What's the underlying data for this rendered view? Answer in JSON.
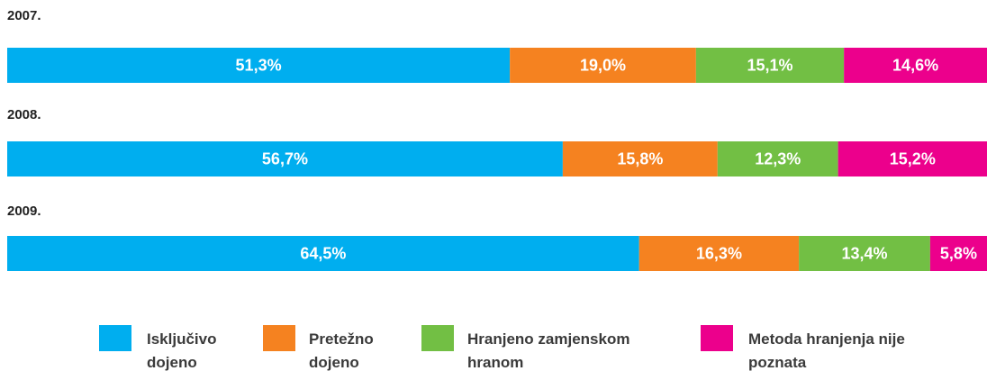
{
  "chart_data": {
    "type": "bar",
    "orientation": "horizontal",
    "stacked": true,
    "categories": [
      "2007.",
      "2008.",
      "2009."
    ],
    "xlim": [
      0,
      100
    ],
    "series": [
      {
        "name": "Isključivo dojeno",
        "color": "#00aeef",
        "values": [
          51.3,
          56.7,
          64.5
        ],
        "value_labels": [
          "51,3%",
          "56,7%",
          "64,5%"
        ]
      },
      {
        "name": "Pretežno dojeno",
        "color": "#f58220",
        "values": [
          19.0,
          15.8,
          16.3
        ],
        "value_labels": [
          "19,0%",
          "15,8%",
          "16,3%"
        ]
      },
      {
        "name": "Hranjeno zamjenskom hranom",
        "color": "#72bf44",
        "values": [
          15.1,
          12.3,
          13.4
        ],
        "value_labels": [
          "15,1%",
          "12,3%",
          "13,4%"
        ]
      },
      {
        "name": "Metoda hranjenja nije poznata",
        "color": "#ec008c",
        "values": [
          14.6,
          15.2,
          5.8
        ],
        "value_labels": [
          "14,6%",
          "15,2%",
          "5,8%"
        ]
      }
    ],
    "legend": "bottom"
  }
}
